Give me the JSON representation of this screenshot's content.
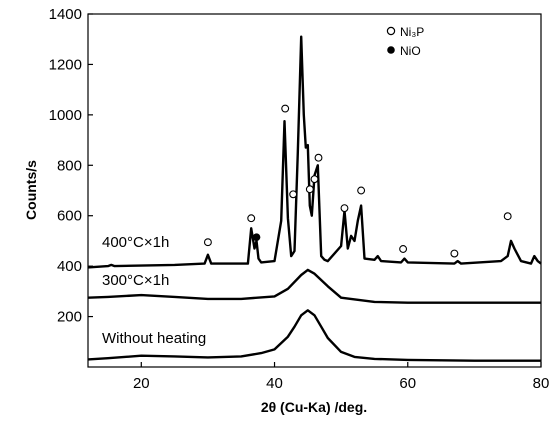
{
  "chart_data": {
    "type": "line",
    "xlabel": "2θ (Cu-Ka) /deg.",
    "ylabel": "Counts/s",
    "xlim": [
      12,
      80
    ],
    "ylim": [
      0,
      1400
    ],
    "xticks": [
      20,
      40,
      60,
      80
    ],
    "yticks": [
      200,
      400,
      600,
      800,
      1000,
      1200,
      1400
    ],
    "grid": false,
    "legend": {
      "position": "top-right",
      "entries": [
        {
          "label": "Ni₃P",
          "marker": "open-circle"
        },
        {
          "label": "NiO",
          "marker": "filled-circle"
        }
      ]
    },
    "series": [
      {
        "name": "400°C×1h",
        "x": [
          12,
          15,
          15.5,
          16,
          25,
          29.5,
          30,
          30.5,
          36,
          36.5,
          37,
          37.3,
          37.6,
          38,
          40,
          41,
          41.5,
          42,
          42.5,
          43,
          43.5,
          44,
          44.4,
          44.7,
          45,
          45.3,
          45.6,
          46,
          46.5,
          47,
          47.5,
          48,
          50,
          50.5,
          51,
          51.5,
          52,
          52.5,
          53,
          53.5,
          55,
          55.5,
          56,
          59,
          59.5,
          60,
          67,
          67.5,
          68,
          74,
          75,
          75.5,
          76,
          77,
          78.5,
          79,
          79.5,
          80
        ],
        "y": [
          395,
          400,
          405,
          400,
          405,
          410,
          445,
          410,
          410,
          550,
          470,
          500,
          430,
          415,
          420,
          580,
          975,
          590,
          440,
          460,
          850,
          1310,
          1000,
          870,
          880,
          640,
          600,
          760,
          800,
          440,
          425,
          420,
          480,
          620,
          470,
          520,
          500,
          580,
          640,
          430,
          425,
          440,
          420,
          415,
          430,
          415,
          410,
          420,
          410,
          420,
          440,
          500,
          470,
          420,
          410,
          440,
          420,
          410
        ]
      },
      {
        "name": "300°C×1h",
        "x": [
          12,
          15,
          20,
          25,
          30,
          35,
          40,
          42,
          44,
          45,
          46,
          48,
          50,
          55,
          60,
          65,
          70,
          75,
          80
        ],
        "y": [
          275,
          278,
          285,
          278,
          270,
          270,
          280,
          310,
          365,
          385,
          370,
          320,
          275,
          258,
          255,
          255,
          255,
          255,
          255
        ]
      },
      {
        "name": "Without heating",
        "x": [
          12,
          15,
          20,
          25,
          30,
          35,
          38,
          40,
          42,
          43,
          44,
          45,
          46,
          47,
          48,
          50,
          52,
          55,
          60,
          70,
          80
        ],
        "y": [
          30,
          35,
          45,
          42,
          38,
          42,
          55,
          70,
          120,
          160,
          205,
          225,
          205,
          160,
          115,
          60,
          40,
          32,
          28,
          25,
          25
        ]
      }
    ],
    "annotations": {
      "ni3p_peaks": [
        {
          "x": 30,
          "y": 495
        },
        {
          "x": 36.5,
          "y": 590
        },
        {
          "x": 41.6,
          "y": 1025
        },
        {
          "x": 42.8,
          "y": 685
        },
        {
          "x": 45.3,
          "y": 705
        },
        {
          "x": 46,
          "y": 745
        },
        {
          "x": 46.6,
          "y": 830
        },
        {
          "x": 50.5,
          "y": 630
        },
        {
          "x": 53,
          "y": 700
        },
        {
          "x": 59.3,
          "y": 468
        },
        {
          "x": 67,
          "y": 450
        },
        {
          "x": 75,
          "y": 598
        }
      ],
      "nio_peaks": [
        {
          "x": 37.3,
          "y": 515
        }
      ]
    }
  }
}
